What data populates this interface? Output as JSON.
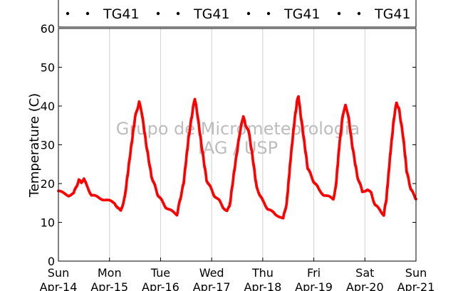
{
  "chart_data": {
    "type": "scatter",
    "title": "",
    "ylabel": "Temperature (C)",
    "xlabel": "",
    "ylim": [
      0,
      60
    ],
    "yticks": [
      0,
      10,
      20,
      30,
      40,
      50,
      60
    ],
    "xlim": [
      0,
      7
    ],
    "xticks": [
      {
        "x": 0,
        "day": "Sun",
        "date": "Apr-14"
      },
      {
        "x": 1,
        "day": "Mon",
        "date": "Apr-15"
      },
      {
        "x": 2,
        "day": "Tue",
        "date": "Apr-16"
      },
      {
        "x": 3,
        "day": "Wed",
        "date": "Apr-17"
      },
      {
        "x": 4,
        "day": "Thu",
        "date": "Apr-18"
      },
      {
        "x": 5,
        "day": "Fri",
        "date": "Apr-19"
      },
      {
        "x": 6,
        "day": "Sat",
        "date": "Apr-20"
      },
      {
        "x": 7,
        "day": "Sun",
        "date": "Apr-21"
      }
    ],
    "grid": "vertical",
    "legend_placement": "top",
    "legend": [
      "TG41",
      "TG41",
      "TG41",
      "TG41"
    ],
    "watermark": [
      "Grupo de Micrometeorologia",
      "IAG / USP"
    ],
    "series": [
      {
        "name": "TG41",
        "color": "#ff0000",
        "keypoints": [
          [
            0.0,
            18.0
          ],
          [
            0.1,
            17.5
          ],
          [
            0.2,
            17.0
          ],
          [
            0.3,
            17.5
          ],
          [
            0.36,
            19.5
          ],
          [
            0.4,
            21.0
          ],
          [
            0.45,
            20.0
          ],
          [
            0.5,
            21.5
          ],
          [
            0.55,
            19.5
          ],
          [
            0.65,
            17.0
          ],
          [
            0.8,
            16.3
          ],
          [
            0.95,
            15.7
          ],
          [
            1.1,
            15.0
          ],
          [
            1.22,
            12.8
          ],
          [
            1.3,
            16.5
          ],
          [
            1.4,
            27.0
          ],
          [
            1.5,
            37.0
          ],
          [
            1.58,
            41.0
          ],
          [
            1.63,
            38.5
          ],
          [
            1.72,
            30.0
          ],
          [
            1.82,
            22.0
          ],
          [
            1.95,
            17.0
          ],
          [
            2.1,
            14.0
          ],
          [
            2.25,
            12.5
          ],
          [
            2.32,
            12.0
          ],
          [
            2.45,
            20.0
          ],
          [
            2.55,
            32.0
          ],
          [
            2.63,
            39.0
          ],
          [
            2.67,
            42.0
          ],
          [
            2.72,
            38.0
          ],
          [
            2.8,
            30.0
          ],
          [
            2.9,
            21.0
          ],
          [
            3.05,
            17.0
          ],
          [
            3.15,
            15.5
          ],
          [
            3.22,
            14.0
          ],
          [
            3.3,
            13.0
          ],
          [
            3.35,
            14.0
          ],
          [
            3.45,
            24.0
          ],
          [
            3.55,
            33.0
          ],
          [
            3.62,
            37.5
          ],
          [
            3.66,
            35.0
          ],
          [
            3.72,
            34.0
          ],
          [
            3.8,
            27.0
          ],
          [
            3.88,
            19.0
          ],
          [
            4.0,
            15.5
          ],
          [
            4.1,
            13.5
          ],
          [
            4.25,
            12.0
          ],
          [
            4.35,
            11.5
          ],
          [
            4.4,
            11.0
          ],
          [
            4.47,
            15.0
          ],
          [
            4.55,
            27.0
          ],
          [
            4.62,
            36.0
          ],
          [
            4.67,
            41.0
          ],
          [
            4.7,
            42.5
          ],
          [
            4.74,
            38.0
          ],
          [
            4.8,
            32.0
          ],
          [
            4.88,
            24.0
          ],
          [
            5.0,
            20.5
          ],
          [
            5.1,
            18.5
          ],
          [
            5.2,
            17.0
          ],
          [
            5.3,
            16.5
          ],
          [
            5.38,
            16.0
          ],
          [
            5.43,
            19.0
          ],
          [
            5.5,
            30.0
          ],
          [
            5.57,
            38.0
          ],
          [
            5.62,
            40.0
          ],
          [
            5.67,
            38.0
          ],
          [
            5.75,
            30.0
          ],
          [
            5.85,
            22.0
          ],
          [
            5.95,
            18.0
          ],
          [
            6.05,
            18.5
          ],
          [
            6.12,
            17.5
          ],
          [
            6.2,
            14.5
          ],
          [
            6.3,
            13.0
          ],
          [
            6.37,
            12.0
          ],
          [
            6.42,
            16.0
          ],
          [
            6.5,
            28.0
          ],
          [
            6.57,
            37.0
          ],
          [
            6.62,
            41.0
          ],
          [
            6.67,
            39.0
          ],
          [
            6.75,
            32.0
          ],
          [
            6.82,
            23.0
          ],
          [
            6.9,
            18.5
          ],
          [
            7.0,
            16.0
          ]
        ]
      }
    ]
  }
}
